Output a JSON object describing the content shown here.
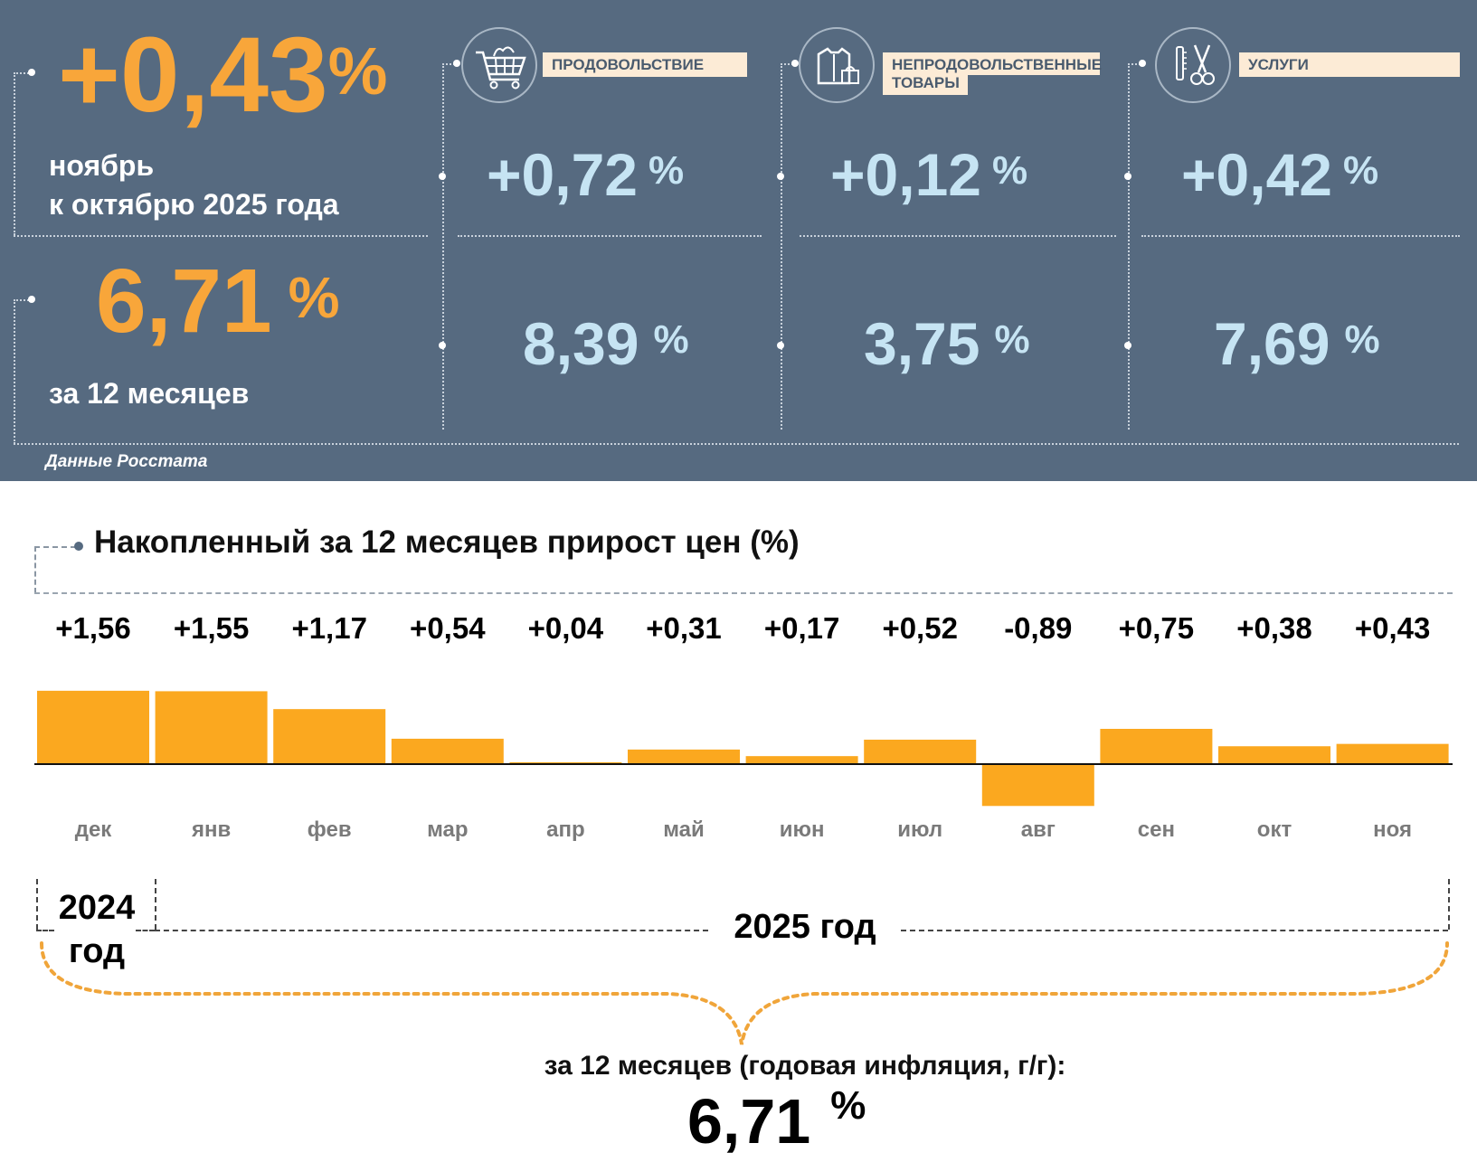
{
  "summary": {
    "month_change": "+0,43",
    "month_pct": "%",
    "month_line1": "ноябрь",
    "month_line2": "к октябрю 2025 года",
    "annual_value": "6,71",
    "annual_pct": "%",
    "annual_label": "за 12 месяцев",
    "source": "Данные Росстата"
  },
  "categories": [
    {
      "name": "ПРОДОВОЛЬСТВИЕ",
      "icon": "shopping-cart-icon",
      "month": "+0,72",
      "annual": "8,39",
      "pct": "%"
    },
    {
      "name_line1": "НЕПРОДОВОЛЬСТВЕННЫЕ",
      "name_line2": "ТОВАРЫ",
      "icon": "clothes-bag-icon",
      "month": "+0,12",
      "annual": "3,75",
      "pct": "%"
    },
    {
      "name": "УСЛУГИ",
      "icon": "comb-scissors-icon",
      "month": "+0,42",
      "annual": "7,69",
      "pct": "%"
    }
  ],
  "chart_data": {
    "type": "bar",
    "title": "Накопленный за 12 месяцев прирост цен (%)",
    "categories": [
      "дек",
      "янв",
      "фев",
      "мар",
      "апр",
      "май",
      "июн",
      "июл",
      "авг",
      "сен",
      "окт",
      "ноя"
    ],
    "values": [
      1.56,
      1.55,
      1.17,
      0.54,
      0.04,
      0.31,
      0.17,
      0.52,
      -0.89,
      0.75,
      0.38,
      0.43
    ],
    "value_labels": [
      "+1,56",
      "+1,55",
      "+1,17",
      "+0,54",
      "+0,04",
      "+0,31",
      "+0,17",
      "+0,52",
      "-0,89",
      "+0,75",
      "+0,38",
      "+0,43"
    ],
    "bar_color": "#fba81f",
    "year_2024_line1": "2024",
    "year_2024_line2": "год",
    "year_2025": "2025 год",
    "total_label": "за 12 месяцев (годовая инфляция, г/г):",
    "total_value": "6,71",
    "total_pct": "%"
  },
  "colors": {
    "panel": "#566a80",
    "orange": "#f8a63a",
    "light_blue": "#c6e4f3"
  }
}
